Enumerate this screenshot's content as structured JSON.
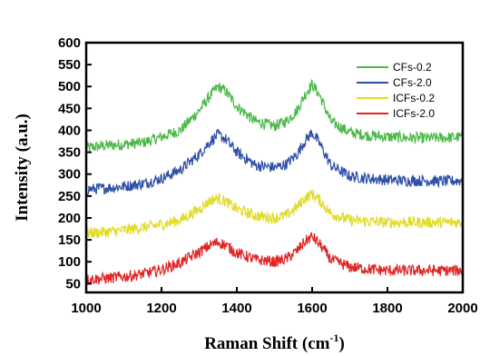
{
  "chart_data": {
    "type": "line",
    "xlabel": "Raman Shift (cm",
    "xlabel_sup": "-1",
    "xlabel_close": ")",
    "ylabel": "Intensity (a.u.)",
    "xlim": [
      1000,
      2000
    ],
    "ylim": [
      30,
      600
    ],
    "xticks": [
      1000,
      1200,
      1400,
      1600,
      1800,
      2000
    ],
    "yticks": [
      50,
      100,
      150,
      200,
      250,
      300,
      350,
      400,
      450,
      500,
      550,
      600
    ],
    "grid": false,
    "legend_position": "top-right",
    "series": [
      {
        "name": "CFs-0.2",
        "color": "#4cb848",
        "x": [
          1000,
          1050,
          1100,
          1150,
          1200,
          1250,
          1300,
          1330,
          1350,
          1370,
          1400,
          1450,
          1500,
          1530,
          1560,
          1580,
          1600,
          1620,
          1650,
          1700,
          1750,
          1800,
          1850,
          1900,
          1950,
          2000
        ],
        "y": [
          360,
          365,
          368,
          372,
          385,
          400,
          445,
          480,
          500,
          490,
          455,
          420,
          410,
          420,
          445,
          480,
          505,
          480,
          420,
          395,
          388,
          385,
          383,
          382,
          383,
          385
        ]
      },
      {
        "name": "CFs-2.0",
        "color": "#2e4fa8",
        "x": [
          1000,
          1050,
          1100,
          1150,
          1200,
          1250,
          1300,
          1330,
          1350,
          1370,
          1400,
          1450,
          1500,
          1530,
          1560,
          1580,
          1600,
          1620,
          1650,
          1700,
          1750,
          1800,
          1850,
          1900,
          1950,
          2000
        ],
        "y": [
          265,
          268,
          272,
          278,
          290,
          310,
          345,
          375,
          390,
          380,
          350,
          320,
          315,
          322,
          345,
          375,
          395,
          370,
          320,
          295,
          290,
          287,
          285,
          285,
          284,
          285
        ]
      },
      {
        "name": "ICFs-0.2",
        "color": "#e0dc2a",
        "x": [
          1000,
          1050,
          1100,
          1150,
          1200,
          1250,
          1300,
          1330,
          1350,
          1370,
          1400,
          1450,
          1500,
          1530,
          1560,
          1580,
          1600,
          1620,
          1650,
          1700,
          1750,
          1800,
          1850,
          1900,
          1950,
          2000
        ],
        "y": [
          165,
          168,
          172,
          178,
          185,
          195,
          220,
          240,
          245,
          238,
          220,
          205,
          200,
          205,
          225,
          245,
          255,
          240,
          210,
          195,
          192,
          190,
          190,
          190,
          190,
          190
        ]
      },
      {
        "name": "ICFs-2.0",
        "color": "#e02424",
        "x": [
          1000,
          1050,
          1100,
          1150,
          1200,
          1250,
          1300,
          1330,
          1350,
          1370,
          1400,
          1450,
          1500,
          1530,
          1560,
          1580,
          1600,
          1620,
          1650,
          1700,
          1750,
          1800,
          1850,
          1900,
          1950,
          2000
        ],
        "y": [
          60,
          62,
          66,
          72,
          82,
          98,
          122,
          138,
          145,
          138,
          120,
          105,
          100,
          106,
          125,
          145,
          158,
          140,
          105,
          88,
          83,
          80,
          80,
          80,
          80,
          80
        ]
      }
    ]
  }
}
